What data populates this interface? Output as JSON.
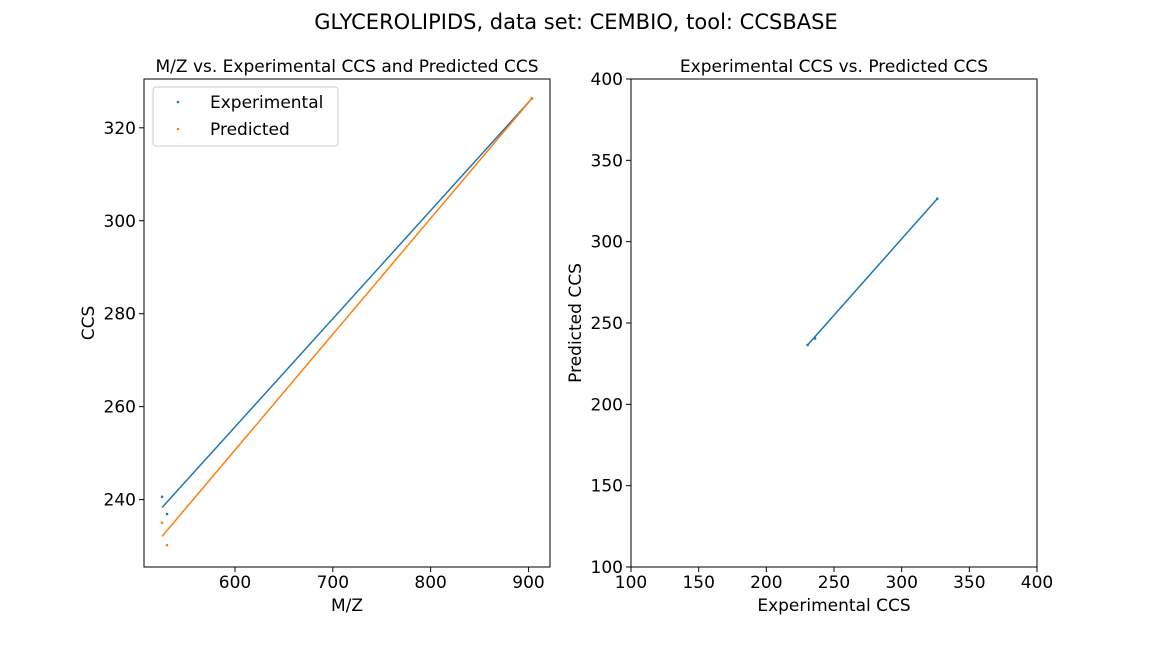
{
  "figure": {
    "suptitle": "GLYCEROLIPIDS, data set: CEMBIO, tool: CCSBASE"
  },
  "colors": {
    "experimental": "#1f77b4",
    "predicted": "#ff7f0e",
    "axis": "#000000"
  },
  "chart_data": [
    {
      "type": "scatter",
      "title": "M/Z vs. Experimental CCS and Predicted CCS",
      "xlabel": "M/Z",
      "ylabel": "CCS",
      "xlim": [
        507,
        922
      ],
      "ylim": [
        225.5,
        330.5
      ],
      "xticks": [
        600,
        700,
        800,
        900
      ],
      "yticks": [
        240,
        260,
        280,
        300,
        320
      ],
      "legend": {
        "placement": "top-left",
        "entries": [
          "Experimental",
          "Predicted"
        ]
      },
      "grid": false,
      "series": [
        {
          "name": "Experimental",
          "color_key": "experimental",
          "points": [
            [
              525.5,
              240.6
            ],
            [
              530.5,
              236.9
            ],
            [
              903.5,
              326.3
            ]
          ],
          "fit_line": [
            [
              525.5,
              238.3
            ],
            [
              903.5,
              326.3
            ]
          ]
        },
        {
          "name": "Predicted",
          "color_key": "predicted",
          "points": [
            [
              525.5,
              235.0
            ],
            [
              530.5,
              230.2
            ],
            [
              903.5,
              326.4
            ]
          ],
          "fit_line": [
            [
              525.5,
              232.1
            ],
            [
              903.5,
              326.3
            ]
          ]
        }
      ]
    },
    {
      "type": "scatter",
      "title": "Experimental CCS vs. Predicted CCS",
      "xlabel": "Experimental CCS",
      "ylabel": "Predicted CCS",
      "xlim": [
        100,
        400
      ],
      "ylim": [
        100,
        400
      ],
      "xticks": [
        100,
        150,
        200,
        250,
        300,
        350,
        400
      ],
      "yticks": [
        100,
        150,
        200,
        250,
        300,
        350,
        400
      ],
      "grid": false,
      "series": [
        {
          "color_key": "experimental",
          "points": [
            [
              230.5,
              236.5
            ],
            [
              236.0,
              240.5
            ],
            [
              326.3,
              326.4
            ]
          ],
          "fit_line": [
            [
              230.5,
              236.5
            ],
            [
              326.3,
              326.4
            ]
          ]
        }
      ]
    }
  ]
}
